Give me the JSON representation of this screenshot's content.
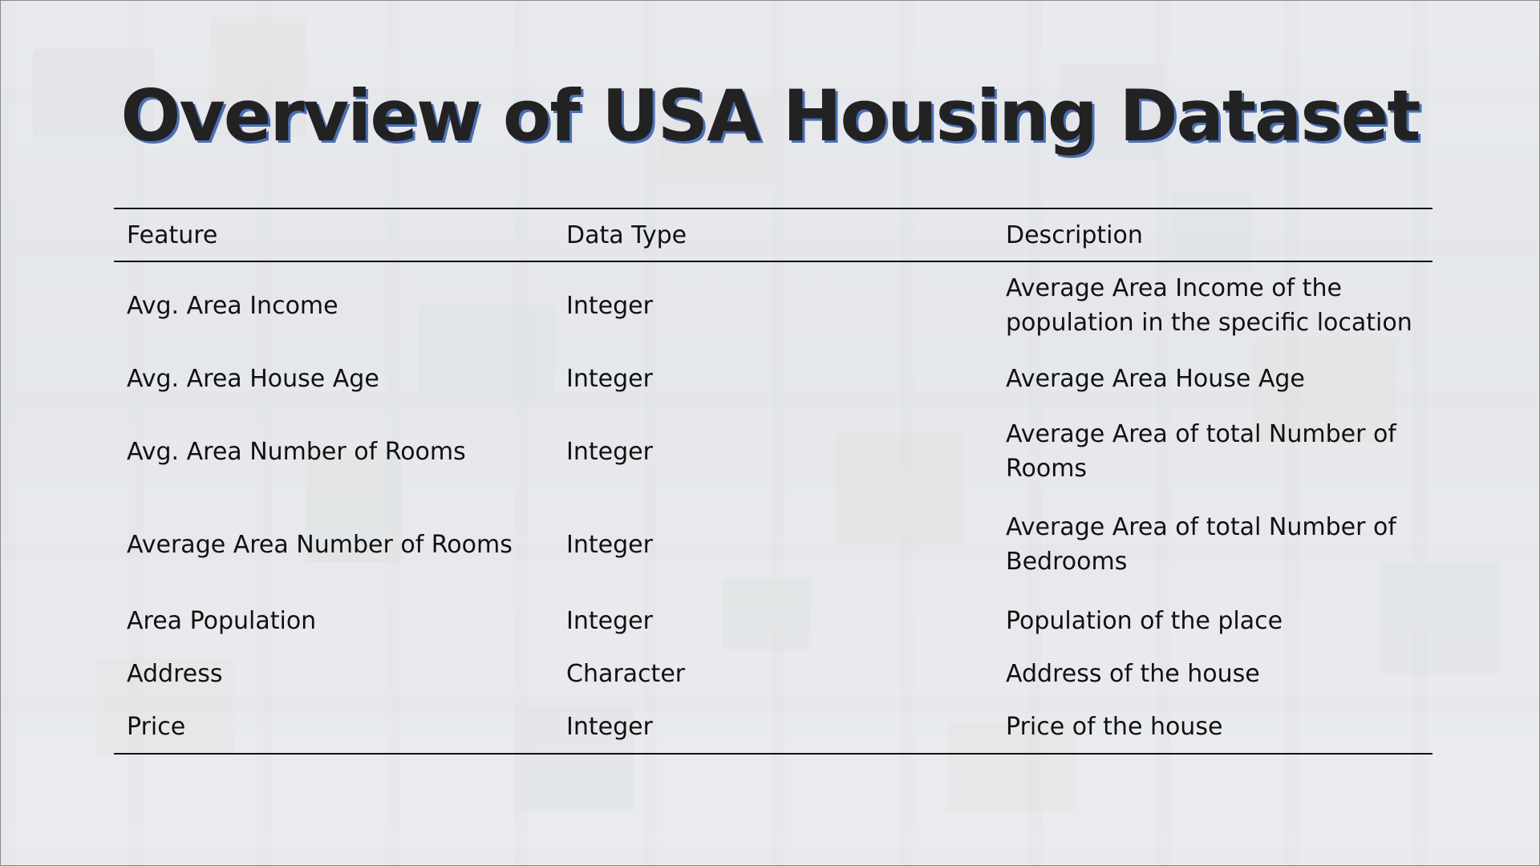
{
  "slide": {
    "title": "Overview of USA Housing Dataset"
  },
  "table": {
    "headers": {
      "feature": "Feature",
      "data_type": "Data Type",
      "description": "Description"
    },
    "rows": [
      {
        "feature": "Avg. Area Income",
        "data_type": "Integer",
        "description": "Average Area Income of the population in the specific location"
      },
      {
        "feature": "Avg. Area House Age",
        "data_type": "Integer",
        "description": "Average Area House Age"
      },
      {
        "feature": "Avg. Area Number of Rooms",
        "data_type": "Integer",
        "description": "Average Area of total Number of Rooms"
      },
      {
        "feature": "Average Area Number of Rooms",
        "data_type": "Integer",
        "description": "Average Area of total Number of Bedrooms"
      },
      {
        "feature": "Area Population",
        "data_type": "Integer",
        "description": "Population of the place"
      },
      {
        "feature": "Address",
        "data_type": "Character",
        "description": "Address of the house"
      },
      {
        "feature": "Price",
        "data_type": "Integer",
        "description": "Price of the house"
      }
    ]
  },
  "colors": {
    "title_text": "#222222",
    "title_shadow": "#4a6fb5",
    "rule": "#111111"
  }
}
